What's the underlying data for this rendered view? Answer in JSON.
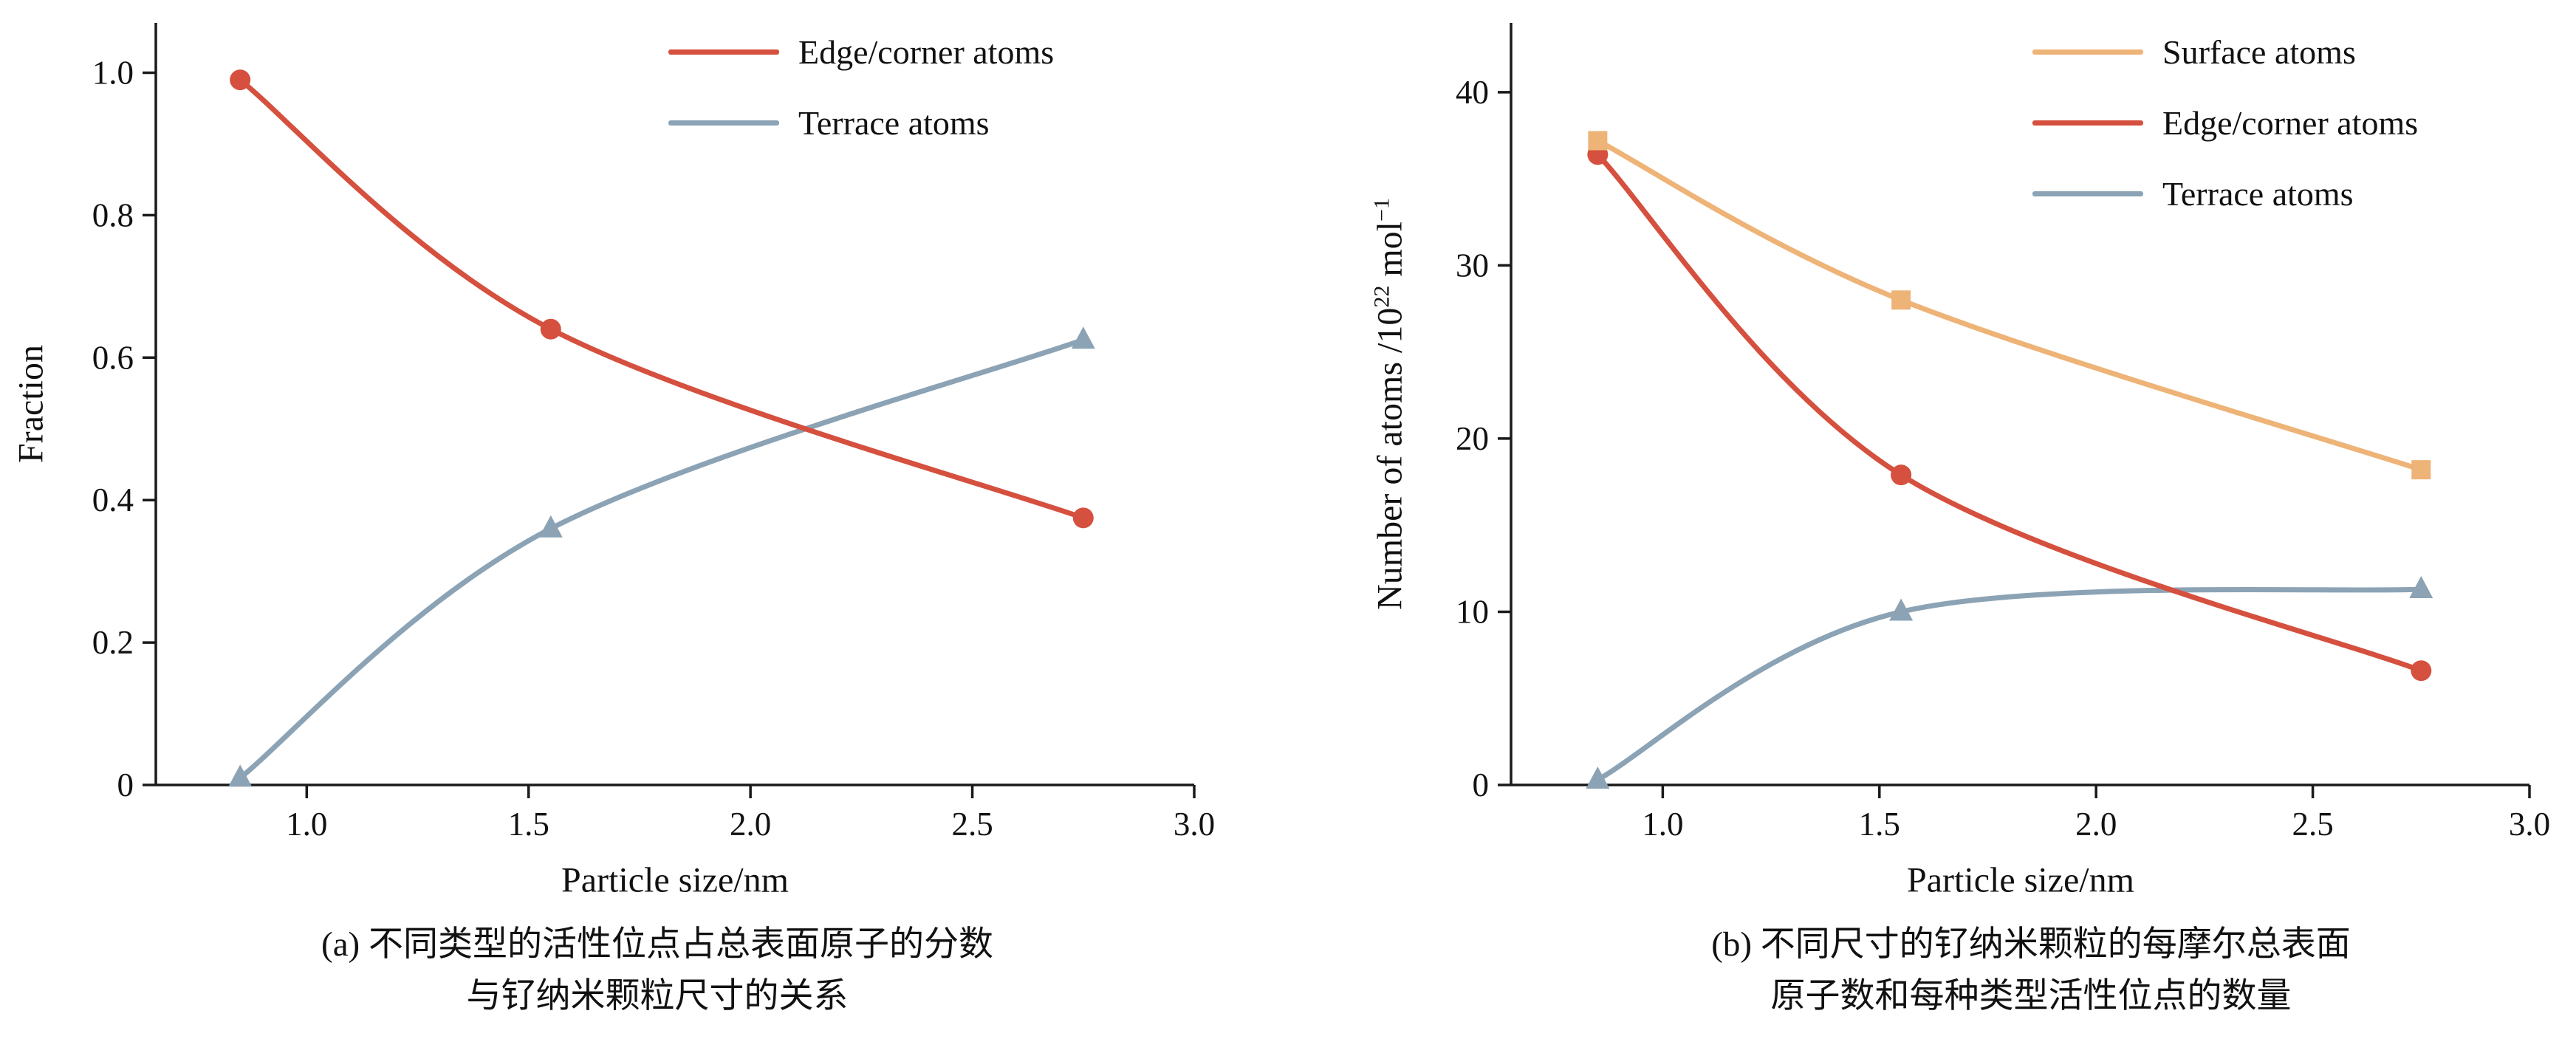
{
  "figure": {
    "background": "#ffffff",
    "axis_color": "#1a1a1a"
  },
  "chart_data": [
    {
      "id": "a",
      "type": "line",
      "xlabel": "Particle size/nm",
      "ylabel": "Fraction",
      "caption_lines": [
        "(a) 不同类型的活性位点占总表面原子的分数",
        "与钌纳米颗粒尺寸的关系"
      ],
      "xlim": [
        0.66,
        3.0
      ],
      "ylim": [
        0,
        1.07
      ],
      "xticks": {
        "values": [
          1.0,
          1.5,
          2.0,
          2.5,
          3.0
        ],
        "labels": [
          "1.0",
          "1.5",
          "2.0",
          "2.5",
          "3.0"
        ]
      },
      "yticks": {
        "values": [
          0,
          0.2,
          0.4,
          0.6,
          0.8,
          1.0
        ],
        "labels": [
          "0",
          "0.2",
          "0.4",
          "0.6",
          "0.8",
          "1.0"
        ]
      },
      "x": [
        0.85,
        1.55,
        2.75
      ],
      "series": [
        {
          "name": "Edge/corner atoms",
          "marker": "circle",
          "color": "#d5503e",
          "values": [
            0.99,
            0.64,
            0.375
          ]
        },
        {
          "name": "Terrace atoms",
          "marker": "triangle",
          "color": "#8ba3b4",
          "values": [
            0.01,
            0.36,
            0.625
          ]
        }
      ],
      "legend_position": "upper right",
      "grid": false
    },
    {
      "id": "b",
      "type": "line",
      "xlabel": "Particle size/nm",
      "ylabel_parts": {
        "text1": "Number of atoms /10",
        "sup1": "22",
        "text2": " mol",
        "sup2": "−1"
      },
      "caption_lines": [
        "(b) 不同尺寸的钌纳米颗粒的每摩尔总表面",
        "原子数和每种类型活性位点的数量"
      ],
      "xlim": [
        0.65,
        3.0
      ],
      "ylim": [
        0,
        44
      ],
      "xticks": {
        "values": [
          1.0,
          1.5,
          2.0,
          2.5,
          3.0
        ],
        "labels": [
          "1.0",
          "1.5",
          "2.0",
          "2.5",
          "3.0"
        ]
      },
      "yticks": {
        "values": [
          0,
          10,
          20,
          30,
          40
        ],
        "labels": [
          "0",
          "10",
          "20",
          "30",
          "40"
        ]
      },
      "x": [
        0.85,
        1.55,
        2.75
      ],
      "series": [
        {
          "name": "Surface atoms",
          "marker": "square",
          "color": "#eeb377",
          "values": [
            37.2,
            28.0,
            18.2
          ]
        },
        {
          "name": "Edge/corner atoms",
          "marker": "circle",
          "color": "#d5503e",
          "values": [
            36.4,
            17.9,
            6.6
          ]
        },
        {
          "name": "Terrace atoms",
          "marker": "triangle",
          "color": "#8ba3b4",
          "values": [
            0.3,
            10.0,
            11.3
          ]
        }
      ],
      "legend_position": "upper right",
      "grid": false
    }
  ]
}
